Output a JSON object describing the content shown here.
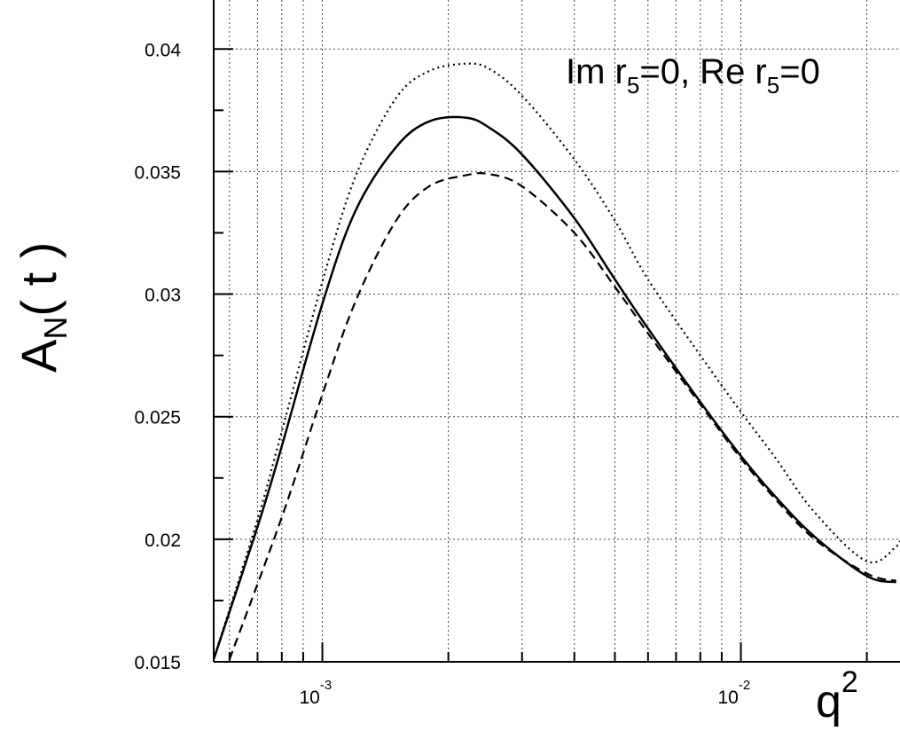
{
  "chart_data": {
    "type": "line",
    "title": "",
    "xlabel": {
      "base": "q",
      "sup": "2"
    },
    "ylabel": {
      "base": "A",
      "sub": "N",
      "rest": "( t )"
    },
    "x_scale": "log",
    "xlim": [
      0.00055,
      0.024
    ],
    "ylim": [
      0.015,
      0.042
    ],
    "grid": true,
    "x_tick_labels": [
      {
        "value": 0.001,
        "base": "10",
        "exp": "-3"
      },
      {
        "value": 0.01,
        "base": "10",
        "exp": "-2"
      }
    ],
    "y_ticks": [
      0.015,
      0.02,
      0.025,
      0.03,
      0.035,
      0.04
    ],
    "y_tick_labels": [
      "0.015",
      "0.02",
      "0.025",
      "0.03",
      "0.035",
      "0.04"
    ],
    "annotation": {
      "part1": "Im r",
      "sub1": "5",
      "part2": "=0,  Re r",
      "sub2": "5",
      "part3": "=0"
    },
    "series": [
      {
        "style": "solid",
        "x": [
          0.00055,
          0.0007,
          0.0008,
          0.001,
          0.0012,
          0.0015,
          0.0018,
          0.0022,
          0.0025,
          0.003,
          0.004,
          0.005,
          0.006,
          0.008,
          0.01,
          0.012,
          0.015,
          0.02,
          0.0235
        ],
        "y": [
          0.0151,
          0.0205,
          0.0238,
          0.0296,
          0.0334,
          0.036,
          0.03705,
          0.0372,
          0.0368,
          0.0357,
          0.0331,
          0.0306,
          0.0286,
          0.0256,
          0.0234,
          0.0218,
          0.0201,
          0.0185,
          0.01825
        ]
      },
      {
        "style": "dashed",
        "x": [
          0.0006,
          0.0008,
          0.001,
          0.0012,
          0.0015,
          0.0018,
          0.0022,
          0.0025,
          0.003,
          0.004,
          0.005,
          0.006,
          0.008,
          0.01,
          0.012,
          0.015,
          0.02,
          0.0235
        ],
        "y": [
          0.0151,
          0.0209,
          0.0259,
          0.0297,
          0.033,
          0.0344,
          0.03485,
          0.0349,
          0.0344,
          0.0325,
          0.0303,
          0.0284,
          0.0255,
          0.0233,
          0.0217,
          0.02,
          0.0186,
          0.0183
        ]
      },
      {
        "style": "dotted",
        "x": [
          0.00055,
          0.0007,
          0.0008,
          0.001,
          0.0012,
          0.0015,
          0.0018,
          0.0022,
          0.0025,
          0.003,
          0.004,
          0.005,
          0.006,
          0.008,
          0.01,
          0.012,
          0.015,
          0.02,
          0.0235,
          0.024
        ],
        "y": [
          0.0151,
          0.0208,
          0.0244,
          0.0305,
          0.0348,
          0.038,
          0.0391,
          0.0394,
          0.0392,
          0.0381,
          0.0355,
          0.033,
          0.0306,
          0.0275,
          0.0252,
          0.0234,
          0.0211,
          0.0191,
          0.0197,
          0.02
        ]
      }
    ]
  }
}
